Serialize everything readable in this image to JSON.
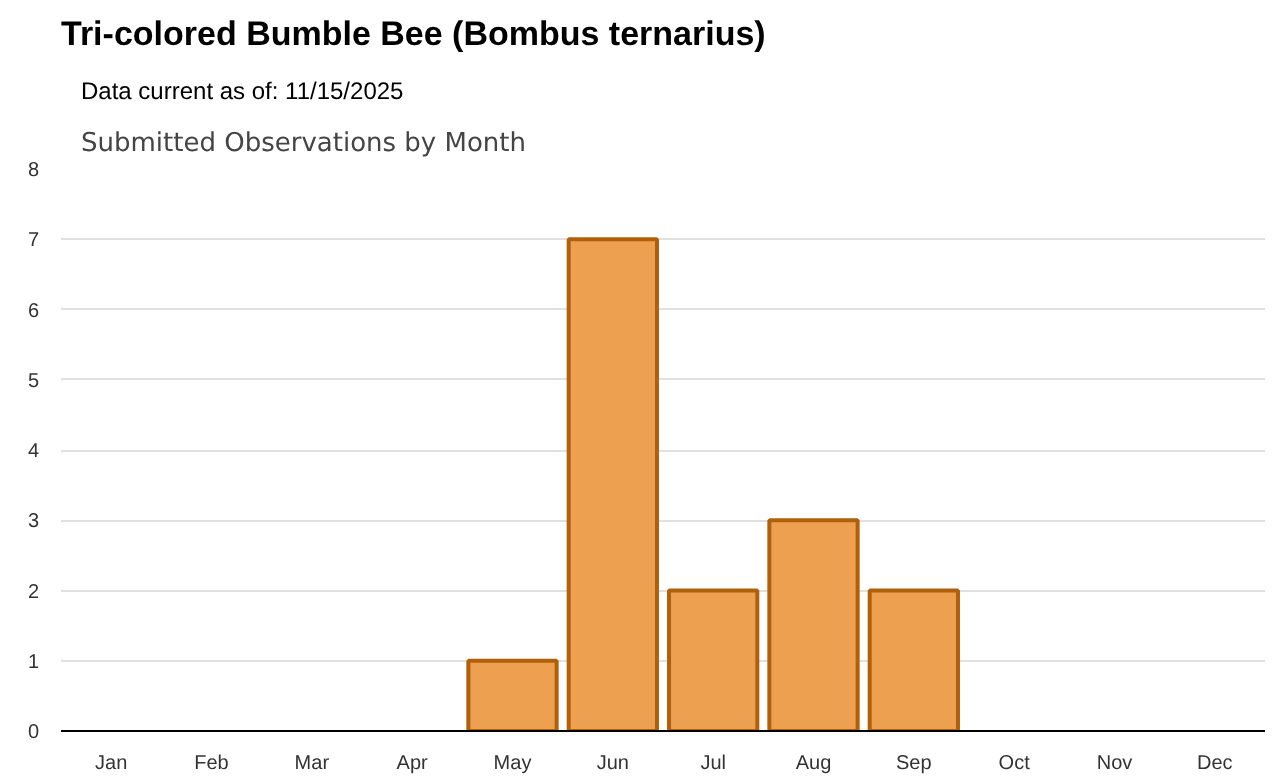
{
  "chart_data": {
    "type": "bar",
    "title": "Tri-colored Bumble Bee   (Bombus ternarius)",
    "subtitle": "Data current as of: 11/15/2025",
    "annotations": [
      "Submitted Observations by Month"
    ],
    "categories": [
      "Jan",
      "Feb",
      "Mar",
      "Apr",
      "May",
      "Jun",
      "Jul",
      "Aug",
      "Sep",
      "Oct",
      "Nov",
      "Dec"
    ],
    "values": [
      0,
      0,
      0,
      0,
      1,
      7,
      2,
      3,
      2,
      0,
      0,
      0
    ],
    "color": "#eda050",
    "ylim": [
      0,
      8
    ],
    "yticks": [
      0,
      1,
      2,
      3,
      4,
      5,
      6,
      7,
      8
    ],
    "grid": "y"
  }
}
